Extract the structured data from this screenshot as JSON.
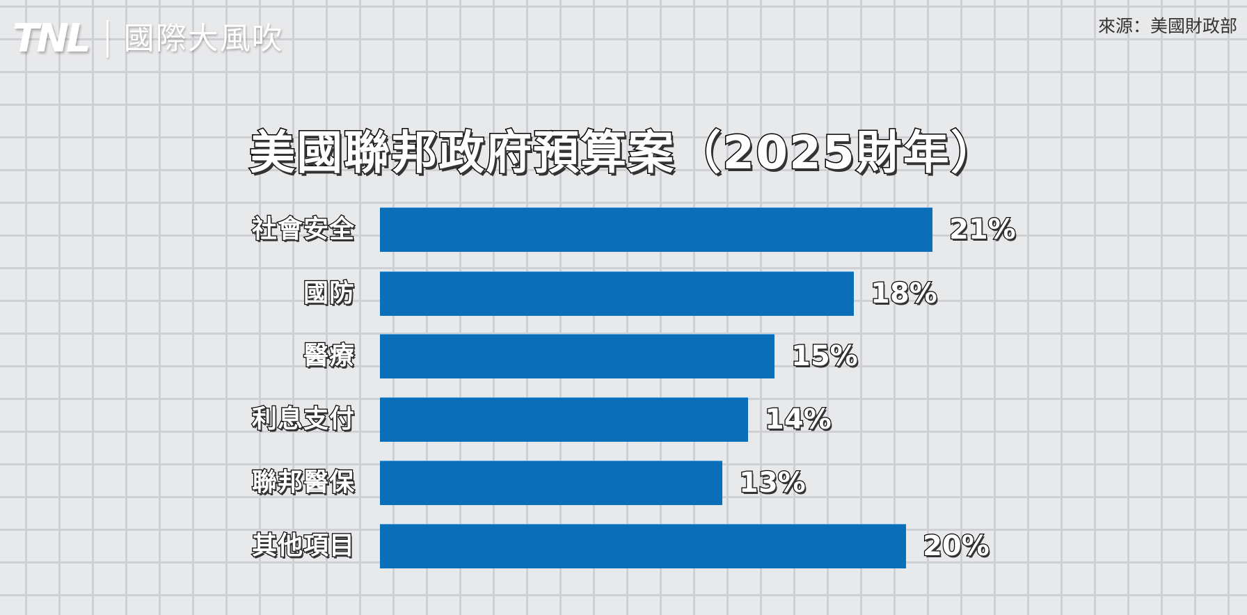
{
  "header": {
    "logo_mark": "TNL",
    "logo_text": "國際大風吹",
    "source": "來源：美國財政部"
  },
  "colors": {
    "bar": "#0a6eb9",
    "background": "#e8e9eb",
    "grid": "#cfd0d3"
  },
  "chart_data": {
    "type": "bar",
    "orientation": "horizontal",
    "title": "美國聯邦政府預算案（2025財年）",
    "categories": [
      "社會安全",
      "國防",
      "醫療",
      "利息支付",
      "聯邦醫保",
      "其他項目"
    ],
    "values": [
      21,
      18,
      15,
      14,
      13,
      20
    ],
    "value_labels": [
      "21%",
      "18%",
      "15%",
      "14%",
      "13%",
      "20%"
    ],
    "unit": "%",
    "xlabel": "",
    "ylabel": "",
    "grid": true,
    "legend": null,
    "source": "來源：美國財政部"
  }
}
